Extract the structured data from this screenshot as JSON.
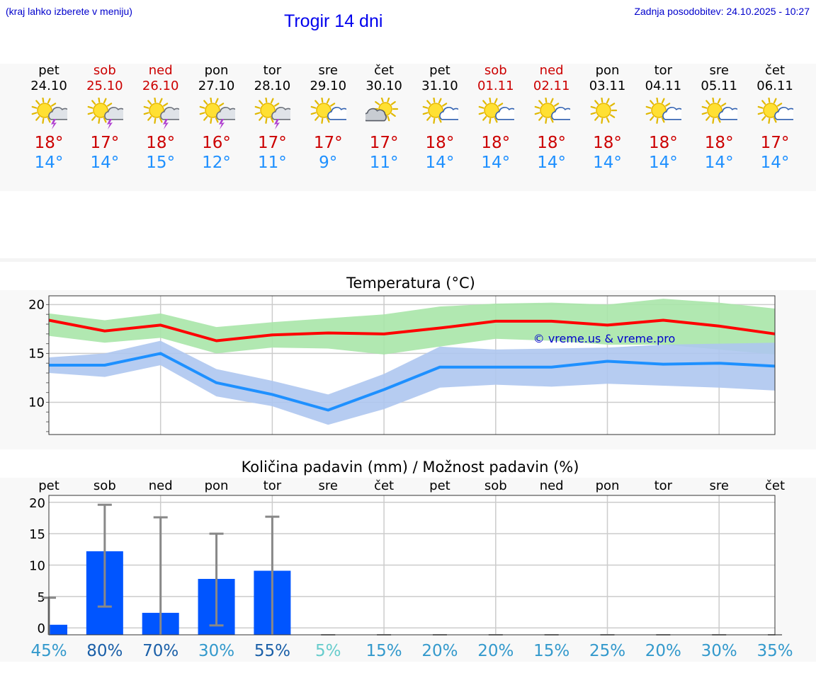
{
  "header": {
    "hint": "(kraj lahko izberete v meniju)",
    "title": "Trogir 14 dni",
    "updated": "Zadnja posodobitev: 24.10.2025 - 10:27"
  },
  "days": [
    {
      "name": "pet",
      "date": "24.10",
      "weekend": false,
      "icon": "sun-cloud-storm-icon",
      "max": "18°",
      "min": "14°"
    },
    {
      "name": "sob",
      "date": "25.10",
      "weekend": true,
      "icon": "sun-cloud-storm-icon",
      "max": "17°",
      "min": "14°"
    },
    {
      "name": "ned",
      "date": "26.10",
      "weekend": true,
      "icon": "sun-cloud-storm-icon",
      "max": "18°",
      "min": "15°"
    },
    {
      "name": "pon",
      "date": "27.10",
      "weekend": false,
      "icon": "sun-cloud-storm-icon",
      "max": "16°",
      "min": "12°"
    },
    {
      "name": "tor",
      "date": "28.10",
      "weekend": false,
      "icon": "sun-cloud-storm-icon",
      "max": "17°",
      "min": "11°"
    },
    {
      "name": "sre",
      "date": "29.10",
      "weekend": false,
      "icon": "sun-small-cloud-icon",
      "max": "17°",
      "min": "9°"
    },
    {
      "name": "čet",
      "date": "30.10",
      "weekend": false,
      "icon": "cloud-sun-icon",
      "max": "17°",
      "min": "11°"
    },
    {
      "name": "pet",
      "date": "31.10",
      "weekend": false,
      "icon": "sun-small-cloud-icon",
      "max": "18°",
      "min": "14°"
    },
    {
      "name": "sob",
      "date": "01.11",
      "weekend": true,
      "icon": "sun-small-cloud-icon",
      "max": "18°",
      "min": "14°"
    },
    {
      "name": "ned",
      "date": "02.11",
      "weekend": true,
      "icon": "sun-small-cloud-icon",
      "max": "18°",
      "min": "14°"
    },
    {
      "name": "pon",
      "date": "03.11",
      "weekend": false,
      "icon": "sun-icon",
      "max": "18°",
      "min": "14°"
    },
    {
      "name": "tor",
      "date": "04.11",
      "weekend": false,
      "icon": "sun-small-cloud-icon",
      "max": "18°",
      "min": "14°"
    },
    {
      "name": "sre",
      "date": "05.11",
      "weekend": false,
      "icon": "sun-small-cloud-icon",
      "max": "18°",
      "min": "14°"
    },
    {
      "name": "čet",
      "date": "06.11",
      "weekend": false,
      "icon": "sun-small-cloud-icon",
      "max": "17°",
      "min": "14°"
    }
  ],
  "chart_data": [
    {
      "type": "line",
      "title": "Temperatura (°C)",
      "watermark": "© vreme.us & vreme.pro",
      "categories": [
        "24.10",
        "25.10",
        "26.10",
        "27.10",
        "28.10",
        "29.10",
        "30.10",
        "31.10",
        "01.11",
        "02.11",
        "03.11",
        "04.11",
        "05.11",
        "06.11"
      ],
      "ylim": [
        6.7,
        20.9
      ],
      "yticks": [
        10,
        15,
        20
      ],
      "grid": true,
      "series": [
        {
          "name": "max",
          "color": "#ff0000",
          "values": [
            18.4,
            17.3,
            17.9,
            16.3,
            16.9,
            17.1,
            17.0,
            17.6,
            18.3,
            18.3,
            17.9,
            18.4,
            17.8,
            17.0
          ]
        },
        {
          "name": "min",
          "color": "#1e90ff",
          "values": [
            13.8,
            13.8,
            15.0,
            12.0,
            10.8,
            9.2,
            11.3,
            13.6,
            13.6,
            13.6,
            14.2,
            13.9,
            14.0,
            13.7
          ]
        }
      ],
      "bands": [
        {
          "name": "max range",
          "color": "#a8e6a8",
          "low": [
            16.8,
            16.1,
            16.6,
            15.0,
            15.6,
            15.5,
            14.9,
            15.7,
            16.5,
            16.3,
            15.9,
            15.9,
            15.4,
            14.9
          ],
          "high": [
            19.1,
            18.4,
            19.1,
            17.7,
            18.2,
            18.6,
            19.0,
            19.8,
            20.1,
            20.2,
            20.0,
            20.6,
            20.2,
            19.6
          ]
        },
        {
          "name": "min range",
          "color": "#aec6f0",
          "low": [
            13.0,
            12.6,
            13.8,
            10.6,
            9.6,
            7.7,
            9.3,
            11.5,
            11.8,
            11.6,
            11.9,
            11.7,
            11.5,
            11.2
          ],
          "high": [
            14.6,
            15.0,
            16.3,
            13.4,
            12.2,
            10.8,
            12.9,
            15.7,
            15.4,
            15.5,
            15.6,
            15.9,
            16.0,
            16.1
          ]
        }
      ]
    },
    {
      "type": "bar",
      "title": "Količina padavin (mm) / Možnost padavin (%)",
      "categories": [
        "pet",
        "sob",
        "ned",
        "pon",
        "tor",
        "sre",
        "čet",
        "pet",
        "sob",
        "ned",
        "pon",
        "tor",
        "sre",
        "čet"
      ],
      "ylim": [
        -1.1,
        21.1
      ],
      "yticks": [
        0,
        5,
        10,
        15,
        20
      ],
      "grid": true,
      "values": [
        0.5,
        12.2,
        2.4,
        7.8,
        9.1,
        0,
        0,
        0,
        0,
        0,
        0,
        0,
        0,
        0
      ],
      "error_high": [
        4.8,
        19.6,
        17.6,
        15.0,
        17.7,
        0,
        0,
        0,
        0,
        0,
        0,
        0,
        0,
        0
      ],
      "error_low": [
        0,
        3.4,
        0,
        0.4,
        0,
        0,
        0,
        0,
        0,
        0,
        0,
        0,
        0,
        0
      ],
      "probability": [
        "45%",
        "80%",
        "70%",
        "30%",
        "55%",
        "5%",
        "15%",
        "20%",
        "20%",
        "15%",
        "25%",
        "20%",
        "30%",
        "35%"
      ],
      "probability_colors": [
        "#3399cc",
        "#1a5fa8",
        "#1a5fa8",
        "#3399cc",
        "#1a5fa8",
        "#66cccc",
        "#3399cc",
        "#3399cc",
        "#3399cc",
        "#3399cc",
        "#3399cc",
        "#3399cc",
        "#3399cc",
        "#3399cc"
      ],
      "bar_color": "#0055ff"
    }
  ]
}
